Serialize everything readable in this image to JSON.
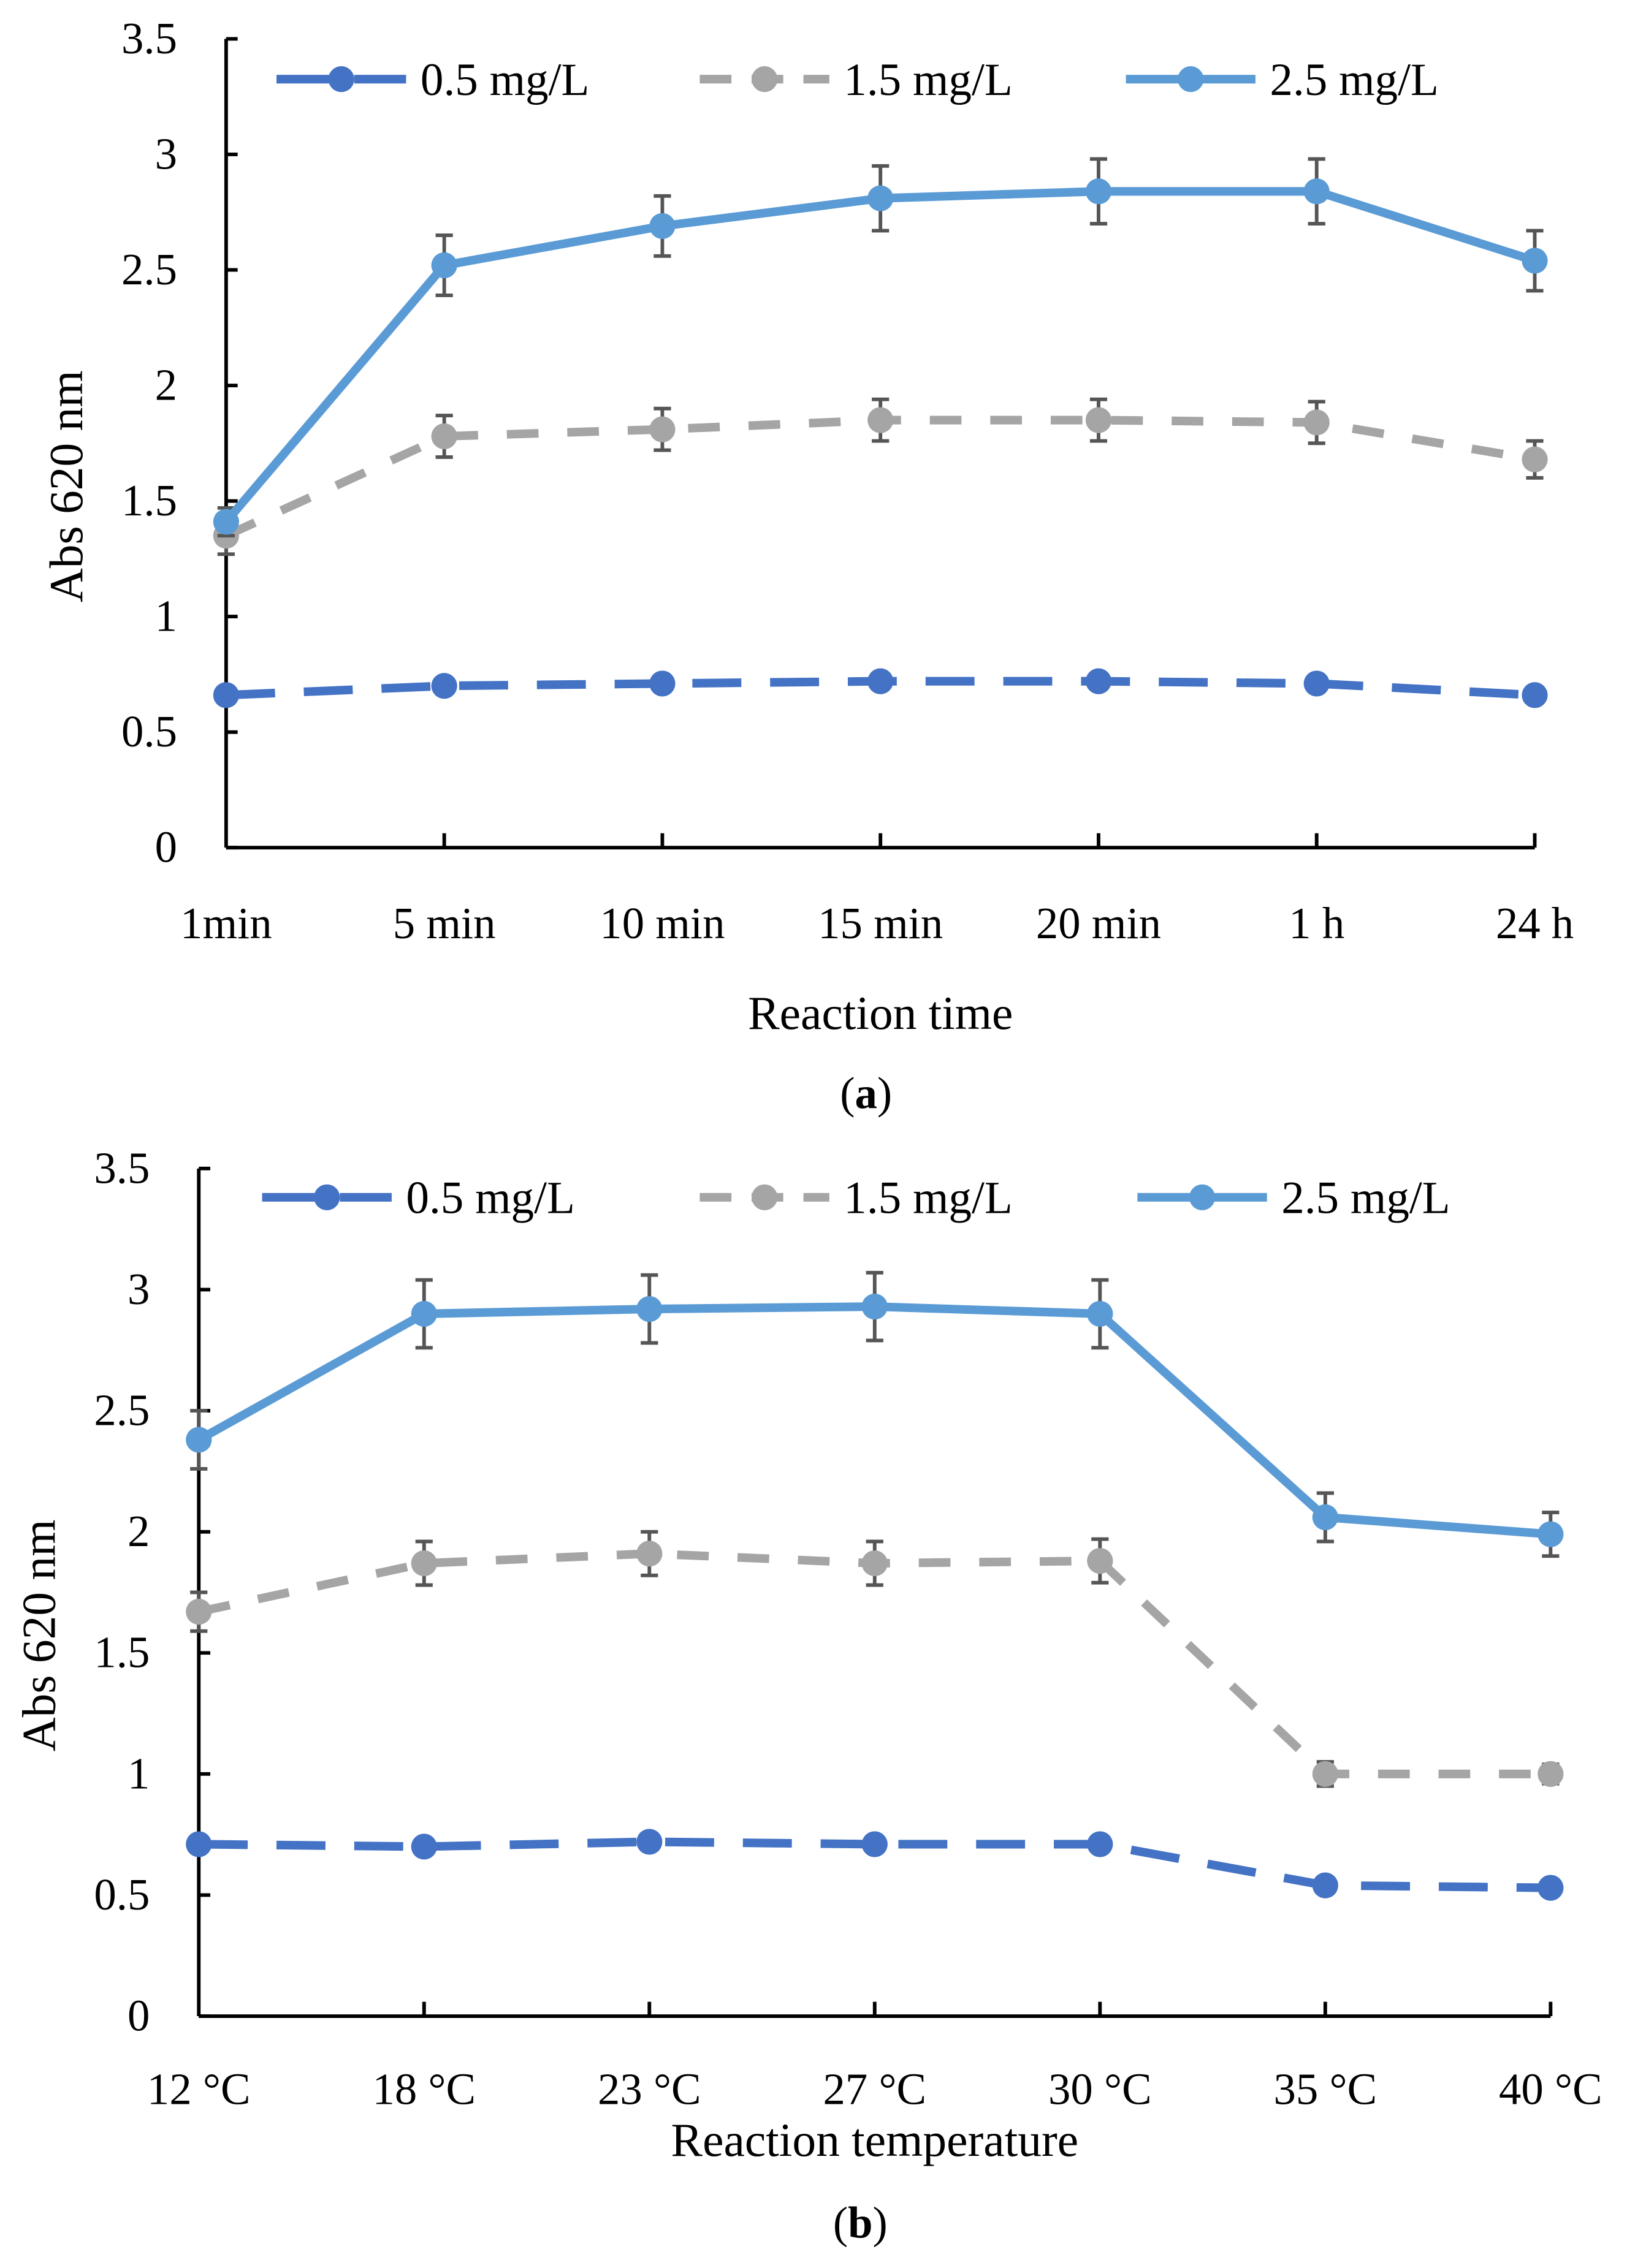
{
  "chart_data": [
    {
      "type": "line",
      "caption_label": "a",
      "xlabel": "Reaction time",
      "ylabel": "Abs 620 nm",
      "ylim": [
        0,
        3.5
      ],
      "yticks": [
        "0",
        "0.5",
        "1",
        "1.5",
        "2",
        "2.5",
        "3",
        "3.5"
      ],
      "categories": [
        "1min",
        "5 min",
        "10 min",
        "15 min",
        "20 min",
        "1 h",
        "24 h"
      ],
      "legend_position": "top",
      "series": [
        {
          "name": "0.5 mg/L",
          "color": "#4472C4",
          "dash": "long-dash",
          "values": [
            0.66,
            0.7,
            0.71,
            0.72,
            0.72,
            0.71,
            0.66
          ],
          "errors": [
            0.02,
            0.02,
            0.02,
            0.02,
            0.02,
            0.02,
            0.02
          ]
        },
        {
          "name": "1.5 mg/L",
          "color": "#A5A5A5",
          "dash": "dash",
          "values": [
            1.35,
            1.78,
            1.81,
            1.85,
            1.85,
            1.84,
            1.68
          ],
          "errors": [
            0.08,
            0.09,
            0.09,
            0.09,
            0.09,
            0.09,
            0.08
          ]
        },
        {
          "name": "2.5 mg/L",
          "color": "#5B9BD5",
          "dash": "solid",
          "values": [
            1.41,
            2.52,
            2.69,
            2.81,
            2.84,
            2.84,
            2.54
          ],
          "errors": [
            0.06,
            0.13,
            0.13,
            0.14,
            0.14,
            0.14,
            0.13
          ]
        }
      ]
    },
    {
      "type": "line",
      "caption_label": "b",
      "xlabel": "Reaction temperature",
      "ylabel": "Abs 620 nm",
      "ylim": [
        0,
        3.5
      ],
      "yticks": [
        "0",
        "0.5",
        "1",
        "1.5",
        "2",
        "2.5",
        "3",
        "3.5"
      ],
      "categories": [
        "12 °C",
        "18 °C",
        "23 °C",
        "27 °C",
        "30 °C",
        "35 °C",
        "40 °C"
      ],
      "legend_position": "top",
      "series": [
        {
          "name": "0.5 mg/L",
          "color": "#4472C4",
          "dash": "long-dash",
          "values": [
            0.71,
            0.7,
            0.72,
            0.71,
            0.71,
            0.54,
            0.53
          ],
          "errors": [
            0.02,
            0.02,
            0.02,
            0.02,
            0.02,
            0.02,
            0.02
          ]
        },
        {
          "name": "1.5 mg/L",
          "color": "#A5A5A5",
          "dash": "dash",
          "values": [
            1.67,
            1.87,
            1.91,
            1.87,
            1.88,
            1.0,
            1.0
          ],
          "errors": [
            0.08,
            0.09,
            0.09,
            0.09,
            0.09,
            0.05,
            0.04
          ]
        },
        {
          "name": "2.5 mg/L",
          "color": "#5B9BD5",
          "dash": "solid",
          "values": [
            2.38,
            2.9,
            2.92,
            2.93,
            2.9,
            2.06,
            1.99
          ],
          "errors": [
            0.12,
            0.14,
            0.14,
            0.14,
            0.14,
            0.1,
            0.09
          ]
        }
      ]
    }
  ]
}
